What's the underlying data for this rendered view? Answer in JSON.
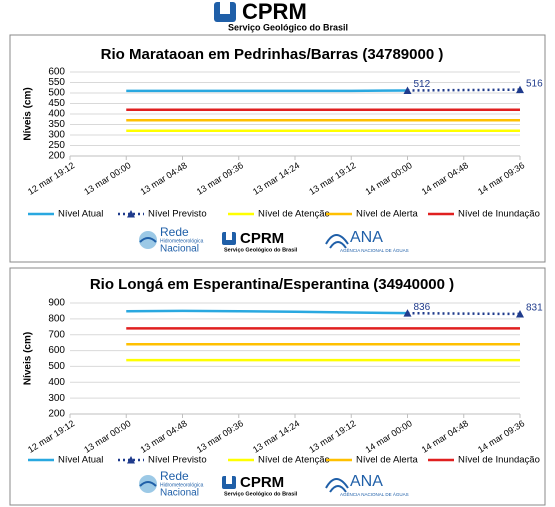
{
  "header": {
    "title": "CPRM",
    "subtitle": "Serviço Geológico do Brasil"
  },
  "logos": {
    "rede": "Rede",
    "rede_sub": "Hidrometeorológica",
    "rede_name": "Nacional",
    "cprm": "CPRM",
    "cprm_sub": "Serviço Geológico do Brasil",
    "ana": "ANA",
    "ana_sub": "AGÊNCIA NACIONAL DE ÁGUAS"
  },
  "chart_data": [
    {
      "type": "line",
      "title": "Rio Marataoan em Pedrinhas/Barras (34789000 )",
      "y_label": "Níveis (cm)",
      "categories": [
        "12 mar 19:12",
        "13 mar 00:00",
        "13 mar 04:48",
        "13 mar 09:36",
        "13 mar 14:24",
        "13 mar 19:12",
        "14 mar 00:00",
        "14 mar 04:48",
        "14 mar 09:36"
      ],
      "ylim": [
        200,
        600
      ],
      "yticks": [
        200,
        250,
        300,
        350,
        400,
        450,
        500,
        550,
        600
      ],
      "grid": true,
      "series": [
        {
          "name": "Nível Atual",
          "color": "#29a8e0",
          "line_style": "solid",
          "values": [
            null,
            510,
            510,
            510,
            510,
            510,
            512,
            null,
            null
          ]
        },
        {
          "name": "Nível Previsto",
          "color": "#1f3b8c",
          "line_style": "dotted",
          "marker": "triangle",
          "data_labels": "ends",
          "values": [
            null,
            null,
            null,
            null,
            null,
            null,
            512,
            514,
            516
          ]
        },
        {
          "name": "Nível de Atenção",
          "color": "#ffff00",
          "line_style": "solid",
          "values": [
            null,
            320,
            320,
            320,
            320,
            320,
            320,
            320,
            320
          ]
        },
        {
          "name": "Nível de Alerta",
          "color": "#ffc000",
          "line_style": "solid",
          "values": [
            null,
            370,
            370,
            370,
            370,
            370,
            370,
            370,
            370
          ]
        },
        {
          "name": "Nível de Inundação",
          "color": "#e02020",
          "line_style": "solid",
          "values": [
            null,
            420,
            420,
            420,
            420,
            420,
            420,
            420,
            420
          ]
        }
      ]
    },
    {
      "type": "line",
      "title": "Rio Longá em Esperantina/Esperantina (34940000 )",
      "y_label": "Níveis (cm)",
      "categories": [
        "12 mar 19:12",
        "13 mar 00:00",
        "13 mar 04:48",
        "13 mar 09:36",
        "13 mar 14:24",
        "13 mar 19:12",
        "14 mar 00:00",
        "14 mar 04:48",
        "14 mar 09:36"
      ],
      "ylim": [
        200,
        900
      ],
      "yticks": [
        200,
        300,
        400,
        500,
        600,
        700,
        800,
        900
      ],
      "grid": true,
      "series": [
        {
          "name": "Nível Atual",
          "color": "#29a8e0",
          "line_style": "solid",
          "values": [
            null,
            848,
            850,
            848,
            845,
            840,
            836,
            null,
            null
          ]
        },
        {
          "name": "Nível Previsto",
          "color": "#1f3b8c",
          "line_style": "dotted",
          "marker": "triangle",
          "data_labels": "ends",
          "values": [
            null,
            null,
            null,
            null,
            null,
            null,
            836,
            833,
            831
          ]
        },
        {
          "name": "Nível de Atenção",
          "color": "#ffff00",
          "line_style": "solid",
          "values": [
            null,
            540,
            540,
            540,
            540,
            540,
            540,
            540,
            540
          ]
        },
        {
          "name": "Nível de Alerta",
          "color": "#ffc000",
          "line_style": "solid",
          "values": [
            null,
            640,
            640,
            640,
            640,
            640,
            640,
            640,
            640
          ]
        },
        {
          "name": "Nível de Inundação",
          "color": "#e02020",
          "line_style": "solid",
          "values": [
            null,
            740,
            740,
            740,
            740,
            740,
            740,
            740,
            740
          ]
        }
      ]
    }
  ]
}
